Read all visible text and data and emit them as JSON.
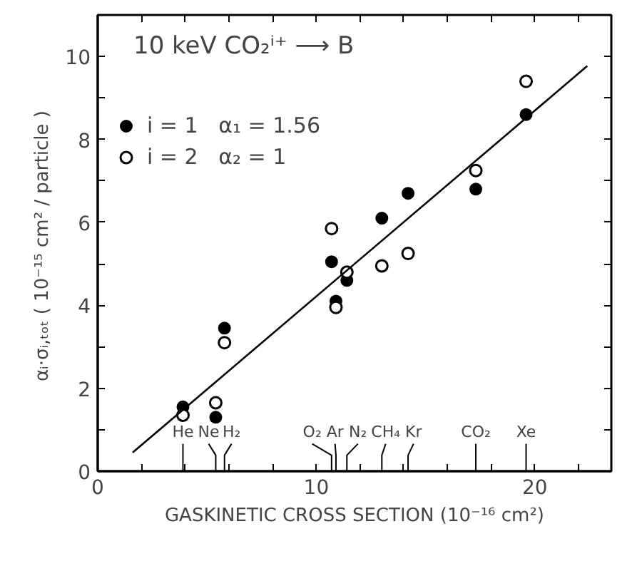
{
  "chart_data": {
    "type": "scatter",
    "xlabel": "GASKINETIC CROSS SECTION (10⁻¹⁶ cm²)",
    "ylabel": "αᵢ·σᵢ,ₜₒₜ  ( 10⁻¹⁵ cm² / particle )",
    "xlim": [
      0,
      23.5
    ],
    "ylim": [
      0,
      11
    ],
    "xticks": [
      0,
      {
        "value": 2,
        "label": null
      },
      {
        "value": 4,
        "label": null
      },
      {
        "value": 6,
        "label": null
      },
      {
        "value": 8,
        "label": null
      },
      10,
      {
        "value": 12,
        "label": null
      },
      {
        "value": 14,
        "label": null
      },
      {
        "value": 16,
        "label": null
      },
      {
        "value": 18,
        "label": null
      },
      20,
      {
        "value": 22,
        "label": null
      }
    ],
    "yticks": [
      0,
      {
        "value": 1,
        "label": null
      },
      2,
      {
        "value": 3,
        "label": null
      },
      4,
      {
        "value": 5,
        "label": null
      },
      6,
      {
        "value": 7,
        "label": null
      },
      8,
      {
        "value": 9,
        "label": null
      },
      10
    ],
    "grid": false,
    "legend": "top left",
    "series": [
      {
        "name": "i = 1   α₁ = 1.56",
        "color": "#000000",
        "marker": "circle",
        "x": [
          3.9,
          5.4,
          5.8,
          10.7,
          10.9,
          11.4,
          13.0,
          14.2,
          17.3,
          19.6
        ],
        "values": [
          1.55,
          1.3,
          3.45,
          5.05,
          4.1,
          4.6,
          6.1,
          6.7,
          6.8,
          8.6
        ]
      },
      {
        "name": "i = 2   α₂ = 1",
        "color": "#000000",
        "marker": "circle_open",
        "x": [
          3.9,
          5.4,
          5.8,
          10.7,
          10.9,
          11.4,
          13.0,
          14.2,
          17.3,
          19.6
        ],
        "values": [
          1.35,
          1.65,
          3.1,
          5.85,
          3.95,
          4.8,
          4.95,
          5.25,
          7.25,
          9.4
        ]
      },
      {
        "type": "line",
        "color": "#000000",
        "line_style": "solid",
        "x": [
          1.6,
          22.4
        ],
        "values": [
          0.45,
          9.77
        ]
      }
    ],
    "annotations": [
      "10 keV   CO₂ⁱ⁺ ⟶ B"
    ],
    "ref_lines": [
      {
        "axis": "x",
        "value": 3.9,
        "label": "He"
      },
      {
        "axis": "x",
        "value": 5.4,
        "label": "Ne"
      },
      {
        "axis": "x",
        "value": 5.8,
        "label": "H₂"
      },
      {
        "axis": "x",
        "value": 10.7,
        "label": "O₂"
      },
      {
        "axis": "x",
        "value": 10.9,
        "label": "Ar"
      },
      {
        "axis": "x",
        "value": 11.4,
        "label": "N₂"
      },
      {
        "axis": "x",
        "value": 13.0,
        "label": "CH₄"
      },
      {
        "axis": "x",
        "value": 14.2,
        "label": "Kr"
      },
      {
        "axis": "x",
        "value": 17.3,
        "label": "CO₂"
      },
      {
        "axis": "x",
        "value": 19.6,
        "label": "Xe"
      }
    ]
  }
}
